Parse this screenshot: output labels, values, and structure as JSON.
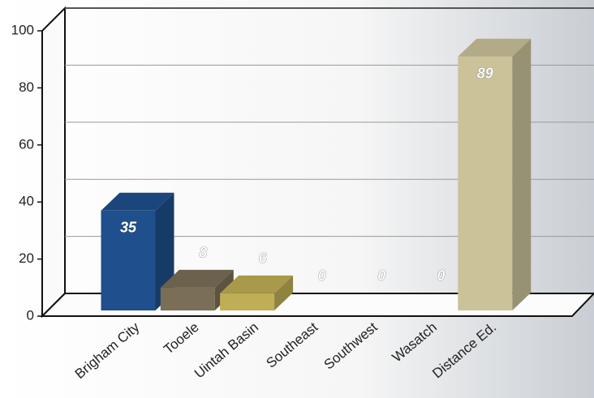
{
  "chart_data": {
    "type": "bar3d",
    "categories": [
      "Brigham City",
      "Tooele",
      "Uintah Basin",
      "Southeast",
      "Southwest",
      "Wasatch",
      "Distance Ed."
    ],
    "values": [
      35,
      8,
      6,
      0,
      0,
      0,
      89
    ],
    "colors": [
      "#1f4f8c",
      "#7a6e57",
      "#bfae55",
      "#8a8a8a",
      "#8a8a8a",
      "#8a8a8a",
      "#cbc29a"
    ],
    "ylim": [
      0,
      100
    ],
    "yticks": [
      0,
      20,
      40,
      60,
      80,
      100
    ],
    "grid": true
  }
}
